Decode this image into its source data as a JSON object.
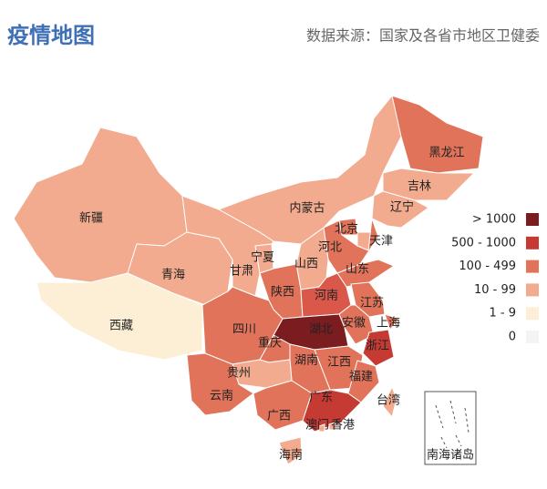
{
  "header": {
    "title": "疫情地图",
    "source": "数据来源：国家及各省市地区卫健委"
  },
  "legend": [
    {
      "label": "> 1000",
      "color": "#7b1d20"
    },
    {
      "label": "500 - 1000",
      "color": "#c63a34"
    },
    {
      "label": "100 - 499",
      "color": "#e0735a"
    },
    {
      "label": "10 - 99",
      "color": "#f2ab8e"
    },
    {
      "label": "1 - 9",
      "color": "#fcefd6"
    },
    {
      "label": "0",
      "color": "#f4f4f4"
    }
  ],
  "provinces": [
    {
      "name": "新疆",
      "color": "#f2ab8e"
    },
    {
      "name": "西藏",
      "color": "#fcefd6"
    },
    {
      "name": "青海",
      "color": "#f2ab8e"
    },
    {
      "name": "甘肃",
      "color": "#f2ab8e"
    },
    {
      "name": "宁夏",
      "color": "#f2ab8e"
    },
    {
      "name": "内蒙古",
      "color": "#f2ab8e"
    },
    {
      "name": "黑龙江",
      "color": "#e0735a"
    },
    {
      "name": "吉林",
      "color": "#f2ab8e"
    },
    {
      "name": "辽宁",
      "color": "#f2ab8e"
    },
    {
      "name": "北京",
      "color": "#e0735a"
    },
    {
      "name": "天津",
      "color": "#f2ab8e"
    },
    {
      "name": "河北",
      "color": "#e0735a"
    },
    {
      "name": "山西",
      "color": "#f2ab8e"
    },
    {
      "name": "山东",
      "color": "#e0735a"
    },
    {
      "name": "陕西",
      "color": "#e0735a"
    },
    {
      "name": "河南",
      "color": "#d9584a"
    },
    {
      "name": "江苏",
      "color": "#e0735a"
    },
    {
      "name": "安徽",
      "color": "#e0735a"
    },
    {
      "name": "上海",
      "color": "#e0735a"
    },
    {
      "name": "湖北",
      "color": "#7b1d20"
    },
    {
      "name": "四川",
      "color": "#e0735a"
    },
    {
      "name": "重庆",
      "color": "#e0735a"
    },
    {
      "name": "浙江",
      "color": "#c63a34"
    },
    {
      "name": "江西",
      "color": "#e0735a"
    },
    {
      "name": "湖南",
      "color": "#e0735a"
    },
    {
      "name": "福建",
      "color": "#e0735a"
    },
    {
      "name": "贵州",
      "color": "#f2ab8e"
    },
    {
      "name": "云南",
      "color": "#e0735a"
    },
    {
      "name": "广西",
      "color": "#e0735a"
    },
    {
      "name": "广东",
      "color": "#c63a34"
    },
    {
      "name": "台湾",
      "color": "#f2ab8e"
    },
    {
      "name": "海南",
      "color": "#f2ab8e"
    },
    {
      "name": "香港",
      "color": "#f2ab8e"
    },
    {
      "name": "澳门",
      "color": "#f2ab8e"
    }
  ],
  "inset_label": "南海诸岛"
}
